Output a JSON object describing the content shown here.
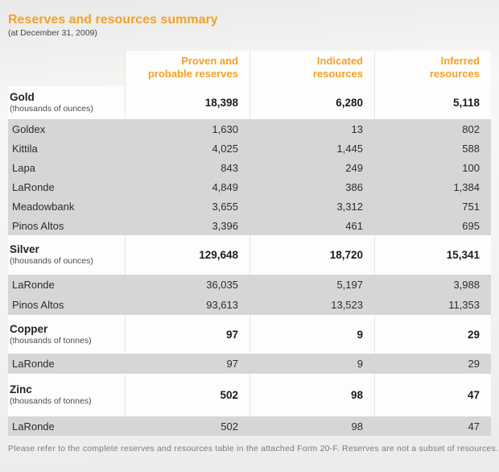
{
  "page": {
    "title": "Reserves and resources summary",
    "subtitle": "(at December 31, 2009)",
    "footnote": "Please refer to the complete reserves and resources table in the attached Form 20-F. Reserves are not a subset of resources."
  },
  "colors": {
    "accent_orange": "#F4A125",
    "row_gray": "#d6d6d7",
    "band_white": "#fdfdfc"
  },
  "table": {
    "columns": [
      {
        "line1": "Proven and",
        "line2": "probable reserves"
      },
      {
        "line1": "Indicated",
        "line2": "resources"
      },
      {
        "line1": "Inferred",
        "line2": "resources"
      }
    ],
    "sections": [
      {
        "metal": "Gold",
        "unit": "(thousands of ounces)",
        "totals": [
          "18,398",
          "6,280",
          "5,118"
        ],
        "mines": [
          {
            "name": "Goldex",
            "values": [
              "1,630",
              "13",
              "802"
            ]
          },
          {
            "name": "Kittila",
            "values": [
              "4,025",
              "1,445",
              "588"
            ]
          },
          {
            "name": "Lapa",
            "values": [
              "843",
              "249",
              "100"
            ]
          },
          {
            "name": "LaRonde",
            "values": [
              "4,849",
              "386",
              "1,384"
            ]
          },
          {
            "name": "Meadowbank",
            "values": [
              "3,655",
              "3,312",
              "751"
            ]
          },
          {
            "name": "Pinos Altos",
            "values": [
              "3,396",
              "461",
              "695"
            ]
          }
        ]
      },
      {
        "metal": "Silver",
        "unit": "(thousands of ounces)",
        "totals": [
          "129,648",
          "18,720",
          "15,341"
        ],
        "mines": [
          {
            "name": "LaRonde",
            "values": [
              "36,035",
              "5,197",
              "3,988"
            ]
          },
          {
            "name": "Pinos Altos",
            "values": [
              "93,613",
              "13,523",
              "11,353"
            ]
          }
        ]
      },
      {
        "metal": "Copper",
        "unit": "(thousands of tonnes)",
        "totals": [
          "97",
          "9",
          "29"
        ],
        "mines": [
          {
            "name": "LaRonde",
            "values": [
              "97",
              "9",
              "29"
            ]
          }
        ]
      },
      {
        "metal": "Zinc",
        "unit": "(thousands of tonnes)",
        "totals": [
          "502",
          "98",
          "47"
        ],
        "mines": [
          {
            "name": "LaRonde",
            "values": [
              "502",
              "98",
              "47"
            ]
          }
        ]
      }
    ]
  }
}
